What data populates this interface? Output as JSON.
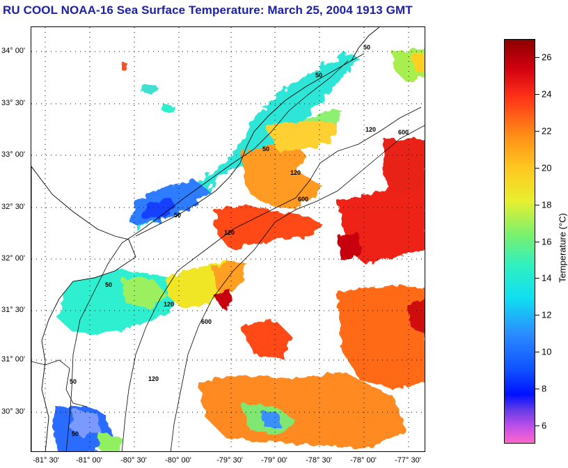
{
  "title": "RU COOL  NOAA-16  Sea Surface Temperature:  March 25, 2004 1913 GMT",
  "map": {
    "lat_labels": [
      "34° 00'",
      "33° 30'",
      "33° 00'",
      "32° 30'",
      "32° 00'",
      "31° 30'",
      "31° 00'",
      "30° 30'"
    ],
    "lon_labels": [
      "-81° 30'",
      "-81° 00'",
      "-80° 30'",
      "-80° 00'",
      "-79° 30'",
      "-79° 00'",
      "-78° 30'",
      "-78° 00'",
      "-77° 30'"
    ],
    "contour_labels": [
      "50",
      "50",
      "50",
      "50",
      "50",
      "50",
      "50",
      "120",
      "120",
      "120",
      "120",
      "120",
      "600",
      "600",
      "600"
    ]
  },
  "colorbar": {
    "label": "Temperature (°C)",
    "ticks": [
      "26",
      "24",
      "22",
      "20",
      "18",
      "16",
      "14",
      "12",
      "10",
      "8",
      "6"
    ],
    "tick_values": [
      26,
      24,
      22,
      20,
      18,
      16,
      14,
      12,
      10,
      8,
      6
    ],
    "min": 5,
    "max": 27,
    "colors": {
      "low": "#ff66cc",
      "cold": "#0010ff",
      "mid": "#10dff0",
      "warm": "#ffc820",
      "hot": "#8c0000"
    }
  }
}
